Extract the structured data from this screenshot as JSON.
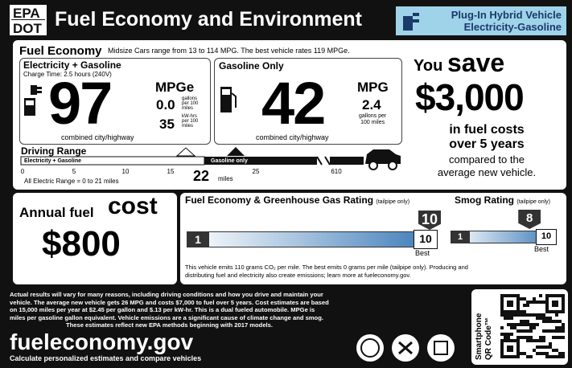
{
  "header": {
    "epa": "EPA",
    "dot": "DOT",
    "title": "Fuel Economy and Environment",
    "vehicle_type": [
      "Plug-In Hybrid Vehicle",
      "Electricity-Gasoline"
    ]
  },
  "fuel_economy": {
    "heading": "Fuel Economy",
    "note": "Midsize Cars range from 13 to 114 MPG. The best vehicle rates 119 MPGe.",
    "electricity": {
      "label": "Electricity + Gasoline",
      "charge_time": "Charge Time: 2.5 hours (240V)",
      "value": "97",
      "unit": "MPGe",
      "gas_rate": "0.0",
      "gas_rate_unit": [
        "gallons",
        "per 100",
        "miles"
      ],
      "kwh_rate": "35",
      "kwh_rate_unit": [
        "kW-hrs",
        "per 100",
        "miles"
      ],
      "caption": "combined city/highway"
    },
    "gasoline": {
      "label": "Gasoline Only",
      "value": "42",
      "unit": "MPG",
      "rate": "2.4",
      "rate_unit": [
        "gallons per",
        "100 miles"
      ],
      "caption": "combined city/highway"
    }
  },
  "driving_range": {
    "heading": "Driving Range",
    "electric_segment": "Electricity + Gasoline",
    "gas_segment": "Gasoline only",
    "ticks": [
      "0",
      "5",
      "10",
      "15",
      "25",
      "610"
    ],
    "total": "22",
    "total_unit": "miles",
    "electric_range": "All Electric Range = 0 to 21 miles"
  },
  "savings": {
    "you": "You",
    "save": "save",
    "amount": "$3,000",
    "lines": [
      "in fuel costs",
      "over 5 years",
      "compared to the",
      "average new vehicle."
    ]
  },
  "annual_cost": {
    "label": "Annual fuel",
    "label_big": "cost",
    "amount": "$800"
  },
  "ghg_rating": {
    "heading": "Fuel Economy & Greenhouse Gas Rating",
    "qualifier": "(tailpipe only)",
    "min": 1,
    "max": 10,
    "rating": 10,
    "best": "Best"
  },
  "smog_rating": {
    "heading": "Smog Rating",
    "qualifier": "(tailpipe only)",
    "min": 1,
    "max": 10,
    "rating": 8,
    "best": "Best"
  },
  "emissions_note": [
    "This vehicle emits 110 grams CO₂ per mile. The best emits 0 grams per mile (tailpipe only). Producing and",
    "distributing fuel and electricity also create emissions; learn more at fueleconomy.gov."
  ],
  "footer": {
    "disclaimer": [
      "Actual results will vary for many reasons, including driving conditions and how you drive and maintain your",
      "vehicle. The average new vehicle gets 26 MPG and costs $7,000 to fuel over 5 years. Cost estimates are based",
      "on 15,000 miles per year at $2.45 per gallon and $.13 per kW-hr. This is a dual fueled automobile. MPGe is",
      "miles per gasoline gallon equivalent. Vehicle emissions are a significant cause of climate change and smog.",
      "These estimates reflect new EPA methods beginning with 2017 models."
    ],
    "site": "fueleconomy.gov",
    "tagline": "Calculate personalized estimates and compare vehicles",
    "qr_label": [
      "Smartphone",
      "QR Code™"
    ]
  }
}
